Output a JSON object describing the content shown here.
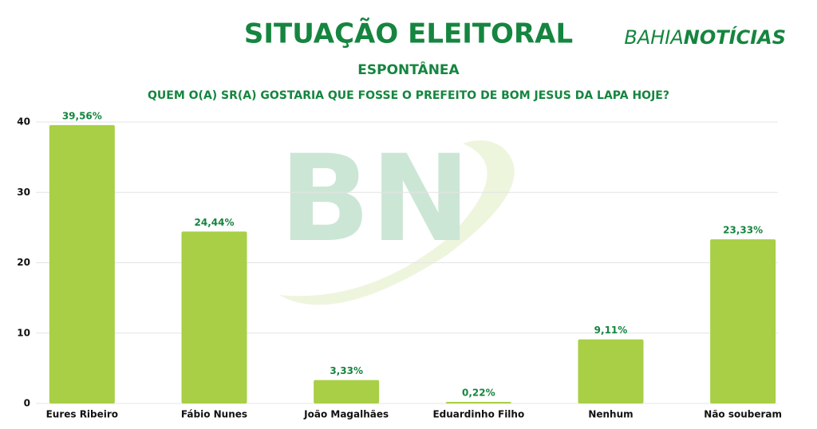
{
  "chart_data": {
    "type": "bar",
    "title": "SITUAÇÃO ELEITORAL",
    "subtitle": "ESPONTÂNEA",
    "question": "QUEM O(A) SR(A) GOSTARIA QUE FOSSE O PREFEITO DE BOM JESUS DA LAPA HOJE?",
    "brand": [
      "BAHIA",
      "NOTÍCIAS"
    ],
    "watermark": "BN",
    "categories": [
      "Eures Ribeiro",
      "Fábio Nunes",
      "João Magalhães",
      "Eduardinho Filho",
      "Nenhum",
      "Não souberam"
    ],
    "values": [
      39.56,
      24.44,
      3.33,
      0.22,
      9.11,
      23.33
    ],
    "value_labels": [
      "39,56%",
      "24,44%",
      "3,33%",
      "0,22%",
      "9,11%",
      "23,33%"
    ],
    "color": "#a8cf45",
    "ylim": [
      0,
      40
    ],
    "yticks": [
      0,
      10,
      20,
      30,
      40
    ],
    "grid": true
  }
}
